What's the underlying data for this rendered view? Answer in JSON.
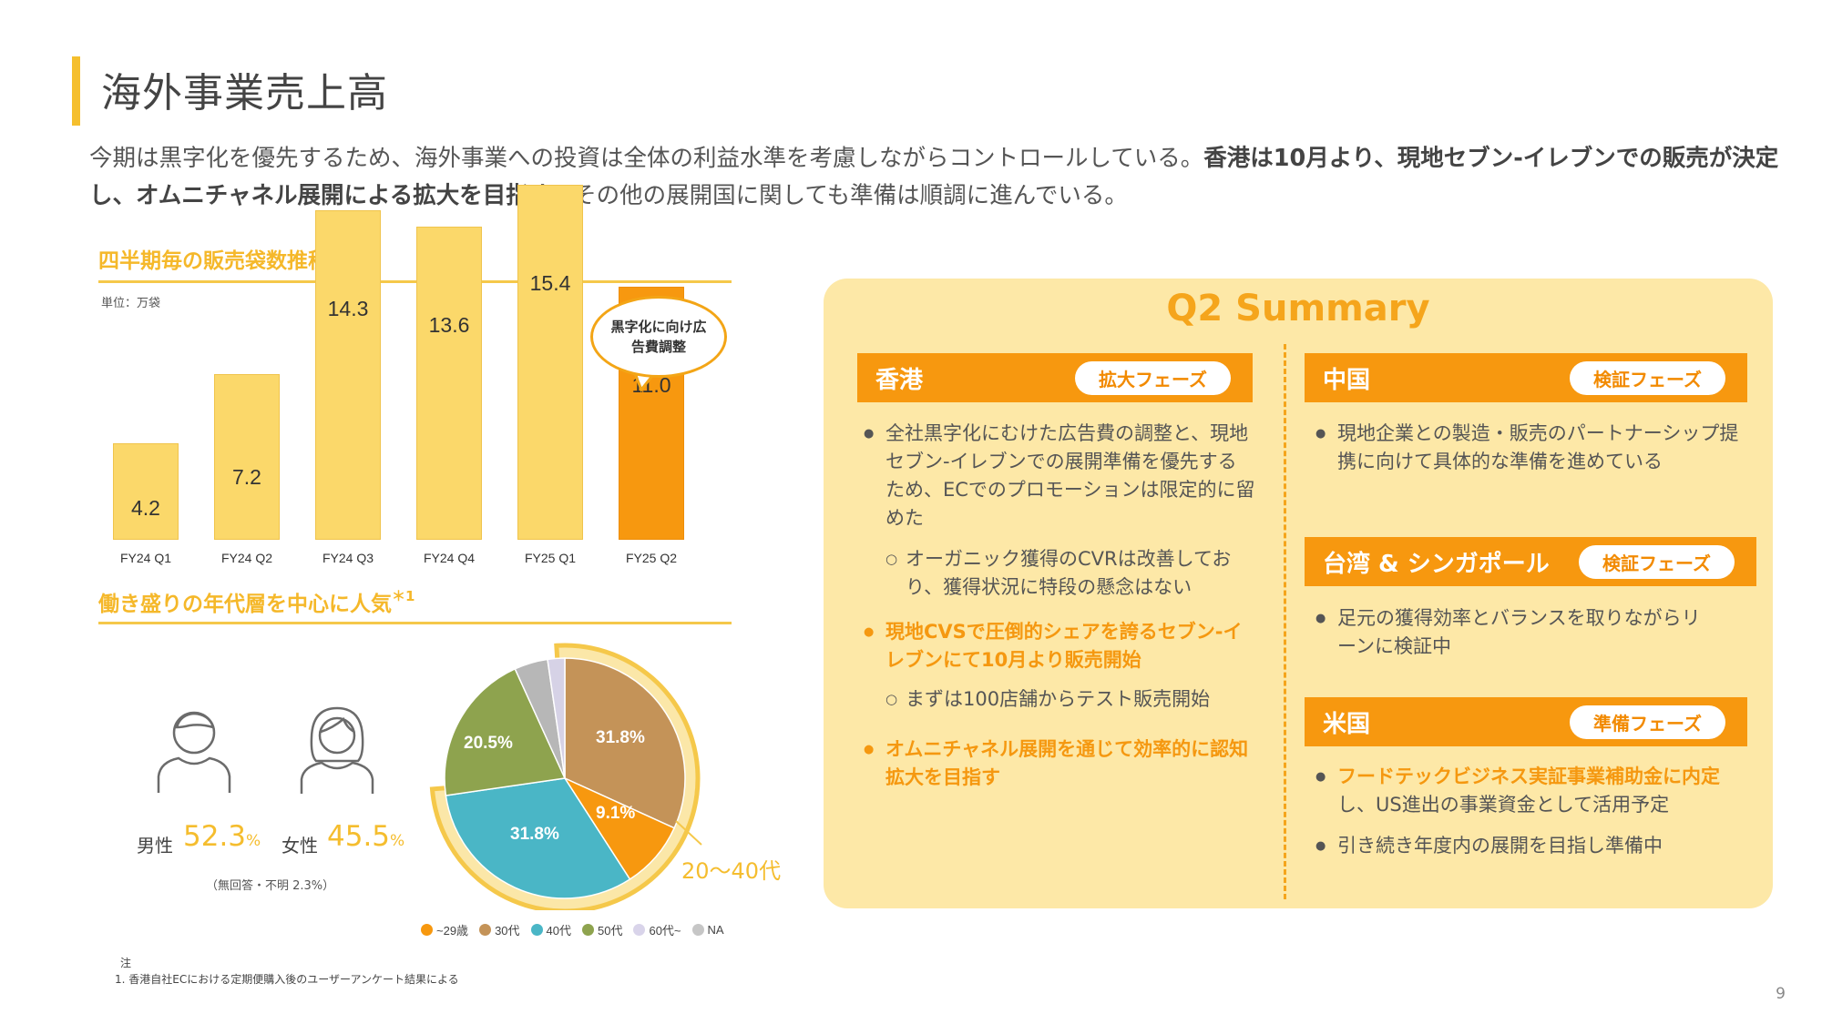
{
  "page": {
    "title": "海外事業売上高",
    "intro_part1": "今期は黒字化を優先するため、海外事業への投資は全体の利益水準を考慮しながらコントロールしている。",
    "intro_bold": "香港は10月より、現地セブン-イレブンでの販売が決定し、オムニチャネル展開による拡大を目指す。",
    "intro_part2": "その他の展開国に関しても準備は順調に進んでいる。",
    "page_number": "9"
  },
  "bar_section": {
    "title": "四半期毎の販売袋数推移",
    "unit": "単位：万袋",
    "callout": "黒字化に向け広告費調整"
  },
  "chart_data": [
    {
      "type": "bar",
      "title": "四半期毎の販売袋数推移",
      "categories": [
        "FY24 Q1",
        "FY24 Q2",
        "FY24 Q3",
        "FY24 Q4",
        "FY25 Q1",
        "FY25 Q2"
      ],
      "values": [
        4.2,
        7.2,
        14.3,
        13.6,
        15.4,
        11.0
      ],
      "value_labels": [
        "4.2",
        "7.2",
        "14.3",
        "13.6",
        "15.4",
        "11.0"
      ],
      "highlight_index": 5,
      "colors": {
        "normal": "#fbd86a",
        "highlight": "#f7980f"
      },
      "ylabel": "単位：万袋",
      "ylim": [
        0,
        16
      ]
    },
    {
      "type": "pie",
      "slices": [
        {
          "name": "30代",
          "value": 31.8,
          "label": "31.8%",
          "color": "#c49358"
        },
        {
          "name": "~29歳",
          "value": 9.1,
          "label": "9.1%",
          "color": "#f7980f"
        },
        {
          "name": "40代",
          "value": 31.8,
          "label": "31.8%",
          "color": "#4ab6c6"
        },
        {
          "name": "50代",
          "value": 20.5,
          "label": "20.5%",
          "color": "#8ea34e"
        },
        {
          "name": "60代~",
          "value": 4.5,
          "label": "",
          "color": "#b7b7b7"
        },
        {
          "name": "NA",
          "value": 2.3,
          "label": "",
          "color": "#d6d2e6"
        }
      ],
      "highlight_group": "20〜40代"
    }
  ],
  "demo_section": {
    "title": "働き盛りの年代層を中心に人気",
    "title_mark": "＊1",
    "male_label": "男性",
    "male_pct": "52.3",
    "female_label": "女性",
    "female_pct": "45.5",
    "pct_sign": "%",
    "no_answer": "（無回答・不明 2.3%）",
    "age_group_label": "20〜40代",
    "legend": [
      {
        "label": "~29歳",
        "color": "#f7980f"
      },
      {
        "label": "30代",
        "color": "#c49358"
      },
      {
        "label": "40代",
        "color": "#4ab6c6"
      },
      {
        "label": "50代",
        "color": "#8ea34e"
      },
      {
        "label": "60代~",
        "color": "#d9d4ea"
      },
      {
        "label": "NA",
        "color": "#c6c6c6"
      }
    ]
  },
  "notes": {
    "head": "注",
    "body": "1.  香港自社ECにおける定期便購入後のユーザーアンケート結果による"
  },
  "summary": {
    "title": "Q2 Summary",
    "hongkong": {
      "name": "香港",
      "phase": "拡大フェーズ",
      "b1": "全社黒字化にむけた広告費の調整と、現地セブン-イレブンでの展開準備を優先するため、ECでのプロモーションは限定的に留めた",
      "s1": "オーガニック獲得のCVRは改善しており、獲得状況に特段の懸念はない",
      "b2": "現地CVSで圧倒的シェアを誇るセブン-イレブンにて10月より販売開始",
      "s2": "まずは100店舗からテスト販売開始",
      "b3": "オムニチャネル展開を通じて効率的に認知拡大を目指す"
    },
    "china": {
      "name": "中国",
      "phase": "検証フェーズ",
      "b1": "現地企業との製造・販売のパートナーシップ提携に向けて具体的な準備を進めている"
    },
    "taiwan": {
      "name": "台湾 & シンガポール",
      "phase": "検証フェーズ",
      "b1": "足元の獲得効率とバランスを取りながらリーンに検証中"
    },
    "us": {
      "name": "米国",
      "phase": "準備フェーズ",
      "b1_hl": "フードテックビジネス実証事業補助金に内定",
      "b1_rest": "し、US進出の事業資金として活用予定",
      "b2": "引き続き年度内の展開を目指し準備中"
    }
  }
}
